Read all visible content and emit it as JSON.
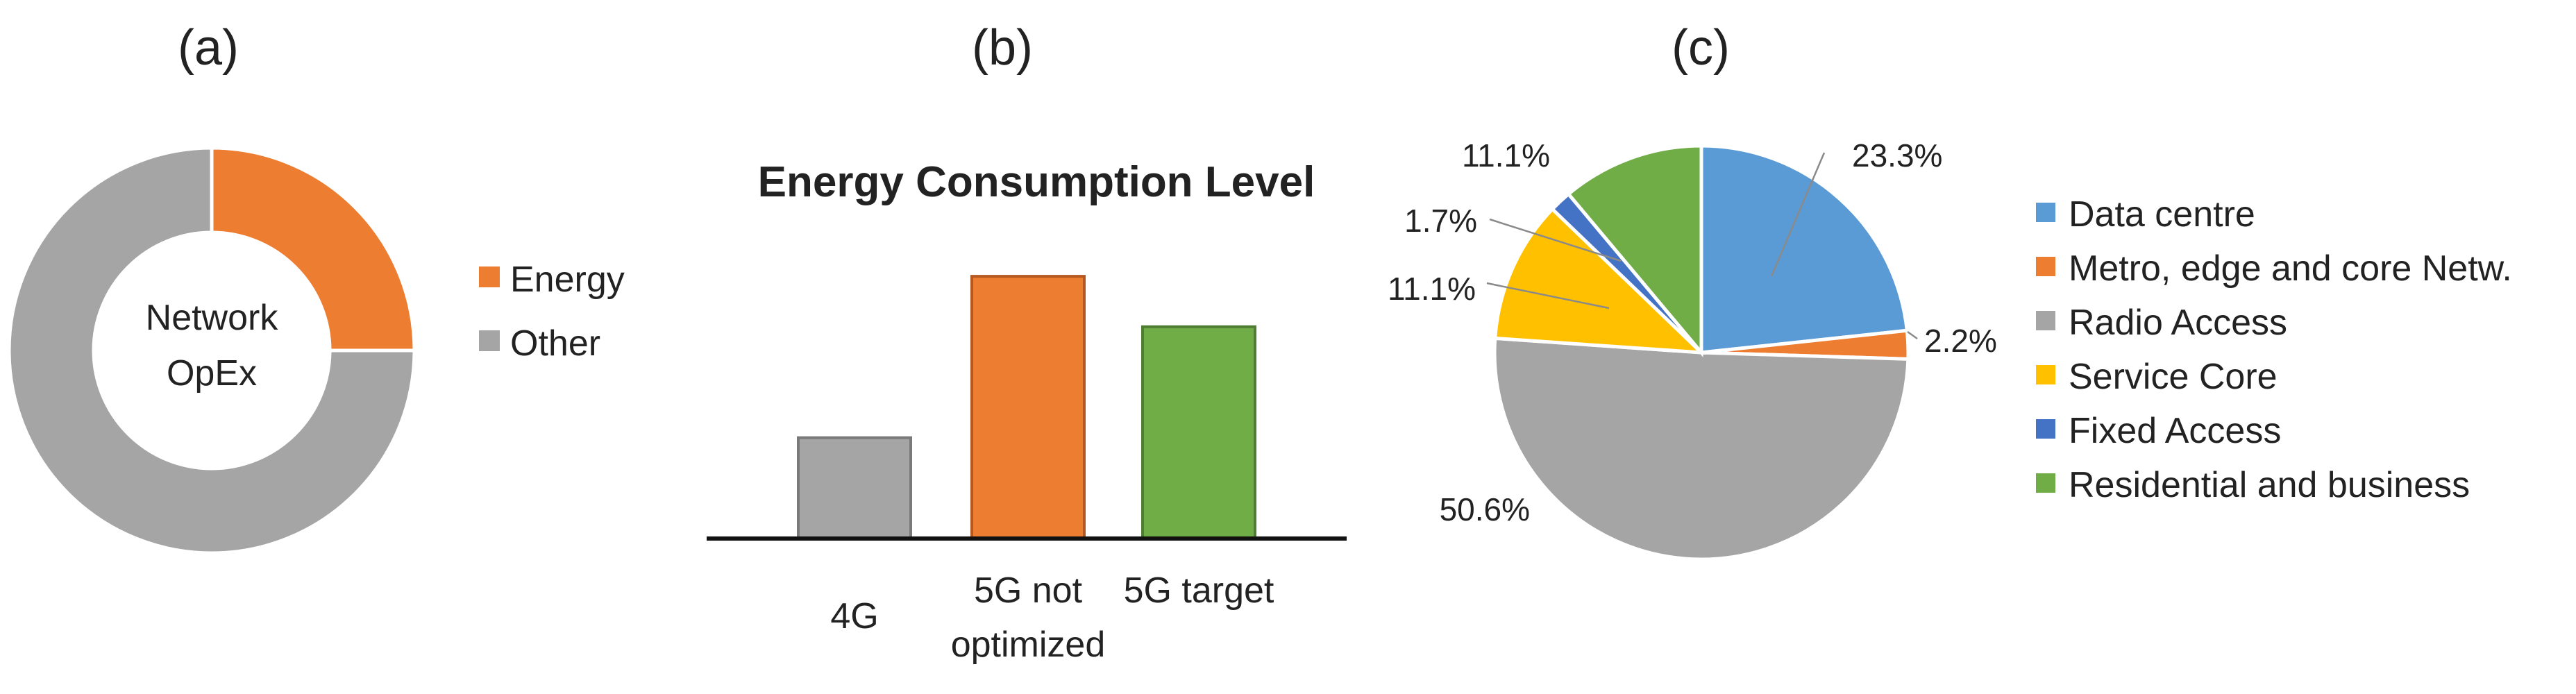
{
  "panels": {
    "a": "(a)",
    "b": "(b)",
    "c": "(c)"
  },
  "colors": {
    "orange": "#ED7D31",
    "grey": "#A5A5A5",
    "green": "#70AD47",
    "blue_light": "#5B9BD5",
    "yellow": "#FFC000",
    "blue_dark": "#4472C4"
  },
  "chart_data": [
    {
      "panel": "a",
      "type": "pie",
      "donut": true,
      "center_label": [
        "Network",
        "OpEx"
      ],
      "slices": [
        {
          "label": "Energy",
          "value": 25
        },
        {
          "label": "Other",
          "value": 75
        }
      ],
      "legend": [
        "Energy",
        "Other"
      ],
      "legend_position": "right"
    },
    {
      "panel": "b",
      "type": "bar",
      "title": "Energy Consumption Level",
      "categories": [
        [
          "4G"
        ],
        [
          "5G not",
          "optimized"
        ],
        [
          "5G target"
        ]
      ],
      "values": [
        1,
        2.6,
        2.1
      ],
      "ylim": [
        0,
        3
      ],
      "axis_visible": false
    },
    {
      "panel": "c",
      "type": "pie",
      "slices": [
        {
          "label": "Data centre",
          "value": 23.3,
          "text": "23.3%"
        },
        {
          "label": "Metro, edge and core Netw.",
          "value": 2.2,
          "text": "2.2%"
        },
        {
          "label": "Radio Access",
          "value": 50.6,
          "text": "50.6%"
        },
        {
          "label": "Service Core",
          "value": 11.1,
          "text": "11.1%"
        },
        {
          "label": "Fixed Access",
          "value": 1.7,
          "text": "1.7%"
        },
        {
          "label": "Residential and business",
          "value": 11.1,
          "text": "11.1%"
        }
      ],
      "legend": [
        "Data centre",
        "Metro, edge and core Netw.",
        "Radio Access",
        "Service Core",
        "Fixed Access",
        "Residential and business"
      ],
      "legend_position": "right"
    }
  ]
}
